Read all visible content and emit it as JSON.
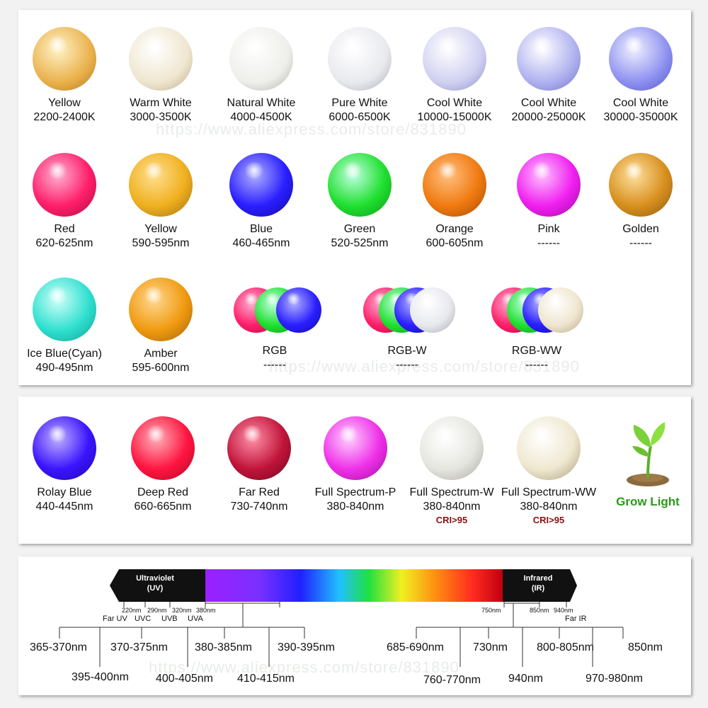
{
  "row1": [
    {
      "name": "Yellow",
      "sub": "2200-2400K",
      "color": "#e9b04a"
    },
    {
      "name": "Warm White",
      "sub": "3000-3500K",
      "color": "#efe6cf"
    },
    {
      "name": "Natural White",
      "sub": "4000-4500K",
      "color": "#eeeeea"
    },
    {
      "name": "Pure White",
      "sub": "6000-6500K",
      "color": "#e8e9ee"
    },
    {
      "name": "Cool White",
      "sub": "10000-15000K",
      "color": "#cfd0f0"
    },
    {
      "name": "Cool White",
      "sub": "20000-25000K",
      "color": "#aeb0ee"
    },
    {
      "name": "Cool  White",
      "sub": "30000-35000K",
      "color": "#8c8ff0"
    }
  ],
  "row2": [
    {
      "name": "Red",
      "sub": "620-625nm",
      "color": "#ff1f6a"
    },
    {
      "name": "Yellow",
      "sub": "590-595nm",
      "color": "#f0b020"
    },
    {
      "name": "Blue",
      "sub": "460-465nm",
      "color": "#2a1fff"
    },
    {
      "name": "Green",
      "sub": "520-525nm",
      "color": "#20e030"
    },
    {
      "name": "Orange",
      "sub": "600-605nm",
      "color": "#f07a10"
    },
    {
      "name": "Pink",
      "sub": "------",
      "color": "#f020f0"
    },
    {
      "name": "Golden",
      "sub": "------",
      "color": "#d8901e"
    }
  ],
  "row3": [
    {
      "name": "Ice Blue(Cyan)",
      "sub": "490-495nm",
      "color": "#30e0d0"
    },
    {
      "name": "Amber",
      "sub": "595-600nm",
      "color": "#f09a10"
    }
  ],
  "multi": [
    {
      "name": "RGB",
      "sub": "------",
      "colors": [
        "#ff1f6a",
        "#20e030",
        "#2a1fff"
      ]
    },
    {
      "name": "RGB-W",
      "sub": "------",
      "colors": [
        "#ff1f6a",
        "#20e030",
        "#2a1fff",
        "#e8e9ee"
      ]
    },
    {
      "name": "RGB-WW",
      "sub": "------",
      "colors": [
        "#ff1f6a",
        "#20e030",
        "#2a1fff",
        "#efe6cf"
      ]
    }
  ],
  "row4": [
    {
      "name": "Rolay Blue",
      "sub": "440-445nm",
      "color": "#3a14ff",
      "cri": ""
    },
    {
      "name": "Deep Red",
      "sub": "660-665nm",
      "color": "#ff1440",
      "cri": ""
    },
    {
      "name": "Far Red",
      "sub": "730-740nm",
      "color": "#c0143a",
      "cri": ""
    },
    {
      "name": "Full Spectrum-P",
      "sub": "380-840nm",
      "color": "#ee30e8",
      "cri": ""
    },
    {
      "name": "Full Spectrum-W",
      "sub": "380-840nm",
      "color": "#e6e6e0",
      "cri": "CRI>95"
    },
    {
      "name": "Full Spectrum-WW",
      "sub": "380-840nm",
      "color": "#efe8d0",
      "cri": "CRI>95"
    }
  ],
  "grow_light": "Grow Light",
  "spectrum": {
    "uv_label_1": "Ultraviolet",
    "uv_label_2": "(UV)",
    "ir_label_1": "Infrared",
    "ir_label_2": "(IR)",
    "uv_ticks": [
      "220nm",
      "290nm",
      "320nm",
      "380nm"
    ],
    "uv_bands": [
      "Far UV",
      "UVC",
      "UVB",
      "UVA"
    ],
    "ir_ticks": [
      "750nm",
      "850nm",
      "940nm"
    ],
    "ir_band": "Far IR",
    "uv_top": [
      "365-370nm",
      "370-375nm",
      "380-385nm",
      "390-395nm"
    ],
    "uv_bottom": [
      "395-400nm",
      "400-405nm",
      "410-415nm"
    ],
    "ir_top": [
      "685-690nm",
      "730nm",
      "800-805nm",
      "850nm"
    ],
    "ir_bottom": [
      "760-770nm",
      "940nm",
      "970-980nm"
    ]
  },
  "watermark": "https://www.aliexpress.com/store/831890",
  "colors": {
    "cri": "#8b1010",
    "grow": "#2a9a1a"
  }
}
